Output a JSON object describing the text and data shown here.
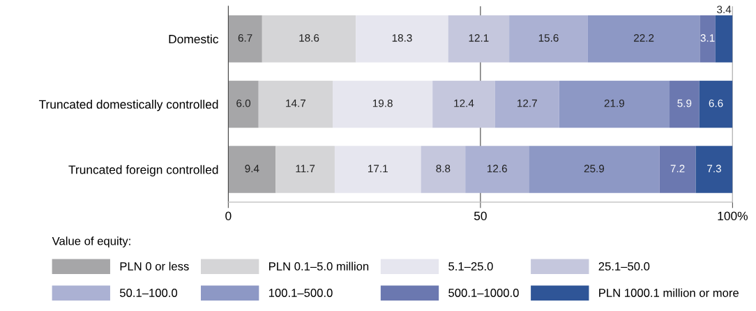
{
  "chart_data": {
    "type": "bar",
    "orientation": "horizontal",
    "stacked": true,
    "grid": "x",
    "legend": "bottom",
    "legend_title": "Value of equity:",
    "categories": [
      "Domestic",
      "Truncated domestically controlled",
      "Truncated foreign controlled"
    ],
    "xlim": [
      0,
      100
    ],
    "xticks": [
      0,
      50,
      {
        "value": 100,
        "label": "100%"
      }
    ],
    "series": [
      {
        "name": "PLN 0 or less",
        "color": "#a6a6a8",
        "values": [
          6.7,
          6.0,
          9.4
        ],
        "value_labels": [
          "6.7",
          "6.0",
          "9.4"
        ]
      },
      {
        "name": "PLN 0.1–5.0 million",
        "color": "#d5d5d7",
        "values": [
          18.6,
          14.7,
          11.7
        ],
        "value_labels": [
          "18.6",
          "14.7",
          "11.7"
        ]
      },
      {
        "name": "5.1–25.0",
        "color": "#e6e6ef",
        "values": [
          18.3,
          19.8,
          17.1
        ],
        "value_labels": [
          "18.3",
          "19.8",
          "17.1"
        ]
      },
      {
        "name": "25.1–50.0",
        "color": "#c5c7dd",
        "values": [
          12.1,
          12.4,
          8.8
        ],
        "value_labels": [
          "12.1",
          "12.4",
          "8.8"
        ]
      },
      {
        "name": "50.1–100.0",
        "color": "#abb1d3",
        "values": [
          15.6,
          12.7,
          12.6
        ],
        "value_labels": [
          "15.6",
          "12.7",
          "12.6"
        ]
      },
      {
        "name": "100.1–500.0",
        "color": "#8d98c5",
        "values": [
          22.2,
          21.9,
          25.9
        ],
        "value_labels": [
          "22.2",
          "21.9",
          "25.9"
        ]
      },
      {
        "name": "500.1–1000.0",
        "color": "#6b78b0",
        "values": [
          3.1,
          5.9,
          7.2
        ],
        "value_labels": [
          "3.1",
          "5.9",
          "7.2"
        ]
      },
      {
        "name": "PLN 1000.1 million or more",
        "color": "#2f5597",
        "values": [
          3.4,
          6.6,
          7.3
        ],
        "value_labels": [
          "3.4",
          "6.6",
          "7.3"
        ]
      }
    ]
  }
}
